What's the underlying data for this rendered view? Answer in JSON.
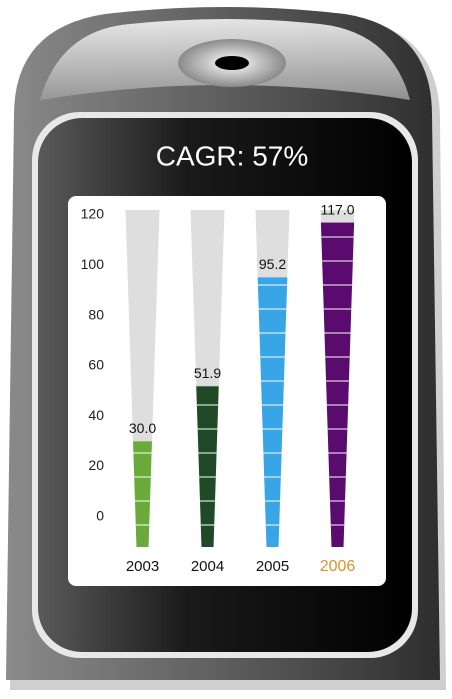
{
  "chart_data": {
    "type": "bar",
    "title": "CAGR: 57%",
    "categories": [
      "2003",
      "2004",
      "2005",
      "2006"
    ],
    "values": [
      30.0,
      51.9,
      95.2,
      117.0
    ],
    "value_labels": [
      "30.0",
      "51.9",
      "95.2",
      "117.0"
    ],
    "colors": [
      "#6aaa3a",
      "#1f4a25",
      "#38a6e6",
      "#5a0b6e"
    ],
    "ylim": [
      -12,
      122
    ],
    "yticks": [
      0,
      20,
      40,
      60,
      80,
      100,
      120
    ],
    "highlight_index": 3,
    "highlight_color": "#d8922c"
  }
}
